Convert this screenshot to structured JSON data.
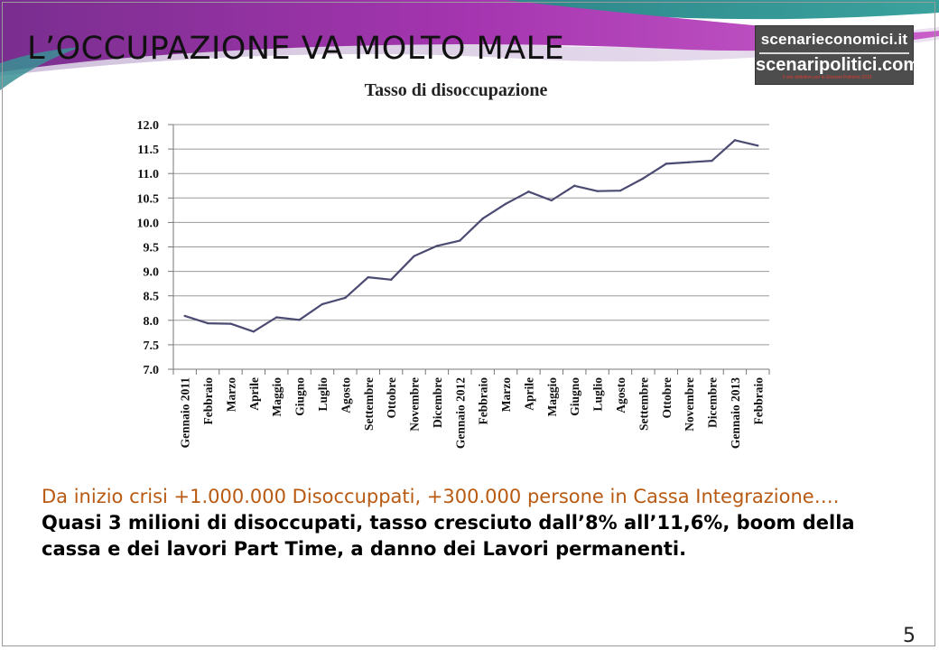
{
  "slide": {
    "title": "L’OCCUPAZIONE VA MOLTO MALE",
    "page_number": "5"
  },
  "logo": {
    "line1": "scenarieconomici.it",
    "line2": "scenaripolitici.com",
    "tagline": "Il sito definitivo per le Elezioni Politiche 2013"
  },
  "body": {
    "orange_text": "Da inizio crisi +1.000.000 Disoccuppati, +300.000 persone in Cassa Integrazione….",
    "bold_text": "Quasi 3 milioni di disoccupati, tasso cresciuto dall’8% all’11,6%, boom della cassa e dei lavori Part Time, a danno dei Lavori permanenti."
  },
  "colors": {
    "line": "#4b4a72",
    "grid": "#9a9a9a",
    "header_purple": "#9b2fa6",
    "header_teal": "#2f8f8f",
    "orange_text": "#b85a12"
  },
  "chart_data": {
    "type": "line",
    "title": "Tasso di  disoccupazione",
    "xlabel": "",
    "ylabel": "",
    "ylim": [
      7.0,
      12.0
    ],
    "yticks": [
      7.0,
      7.5,
      8.0,
      8.5,
      9.0,
      9.5,
      10.0,
      10.5,
      11.0,
      11.5,
      12.0
    ],
    "ytick_labels": [
      "7.0",
      "7.5",
      "8.0",
      "8.5",
      "9.0",
      "9.5",
      "10.0",
      "10.5",
      "11.0",
      "11.5",
      "12.0"
    ],
    "grid": true,
    "legend": false,
    "categories": [
      "Gennaio 2011",
      "Febbraio",
      "Marzo",
      "Aprile",
      "Maggio",
      "Giugno",
      "Luglio",
      "Agosto",
      "Settembre",
      "Ottobre",
      "Novembre",
      "Dicembre",
      "Gennaio 2012",
      "Febbraio",
      "Marzo",
      "Aprile",
      "Maggio",
      "Giugno",
      "Luglio",
      "Agosto",
      "Settembre",
      "Ottobre",
      "Novembre",
      "Dicembre",
      "Gennaio 2013",
      "Febbraio"
    ],
    "series": [
      {
        "values": [
          8.09,
          7.94,
          7.93,
          7.77,
          8.06,
          8.01,
          8.33,
          8.46,
          8.88,
          8.83,
          9.31,
          9.52,
          9.63,
          10.08,
          10.38,
          10.63,
          10.45,
          10.75,
          10.64,
          10.65,
          10.9,
          11.2,
          11.23,
          11.26,
          11.68,
          11.57
        ]
      }
    ]
  }
}
